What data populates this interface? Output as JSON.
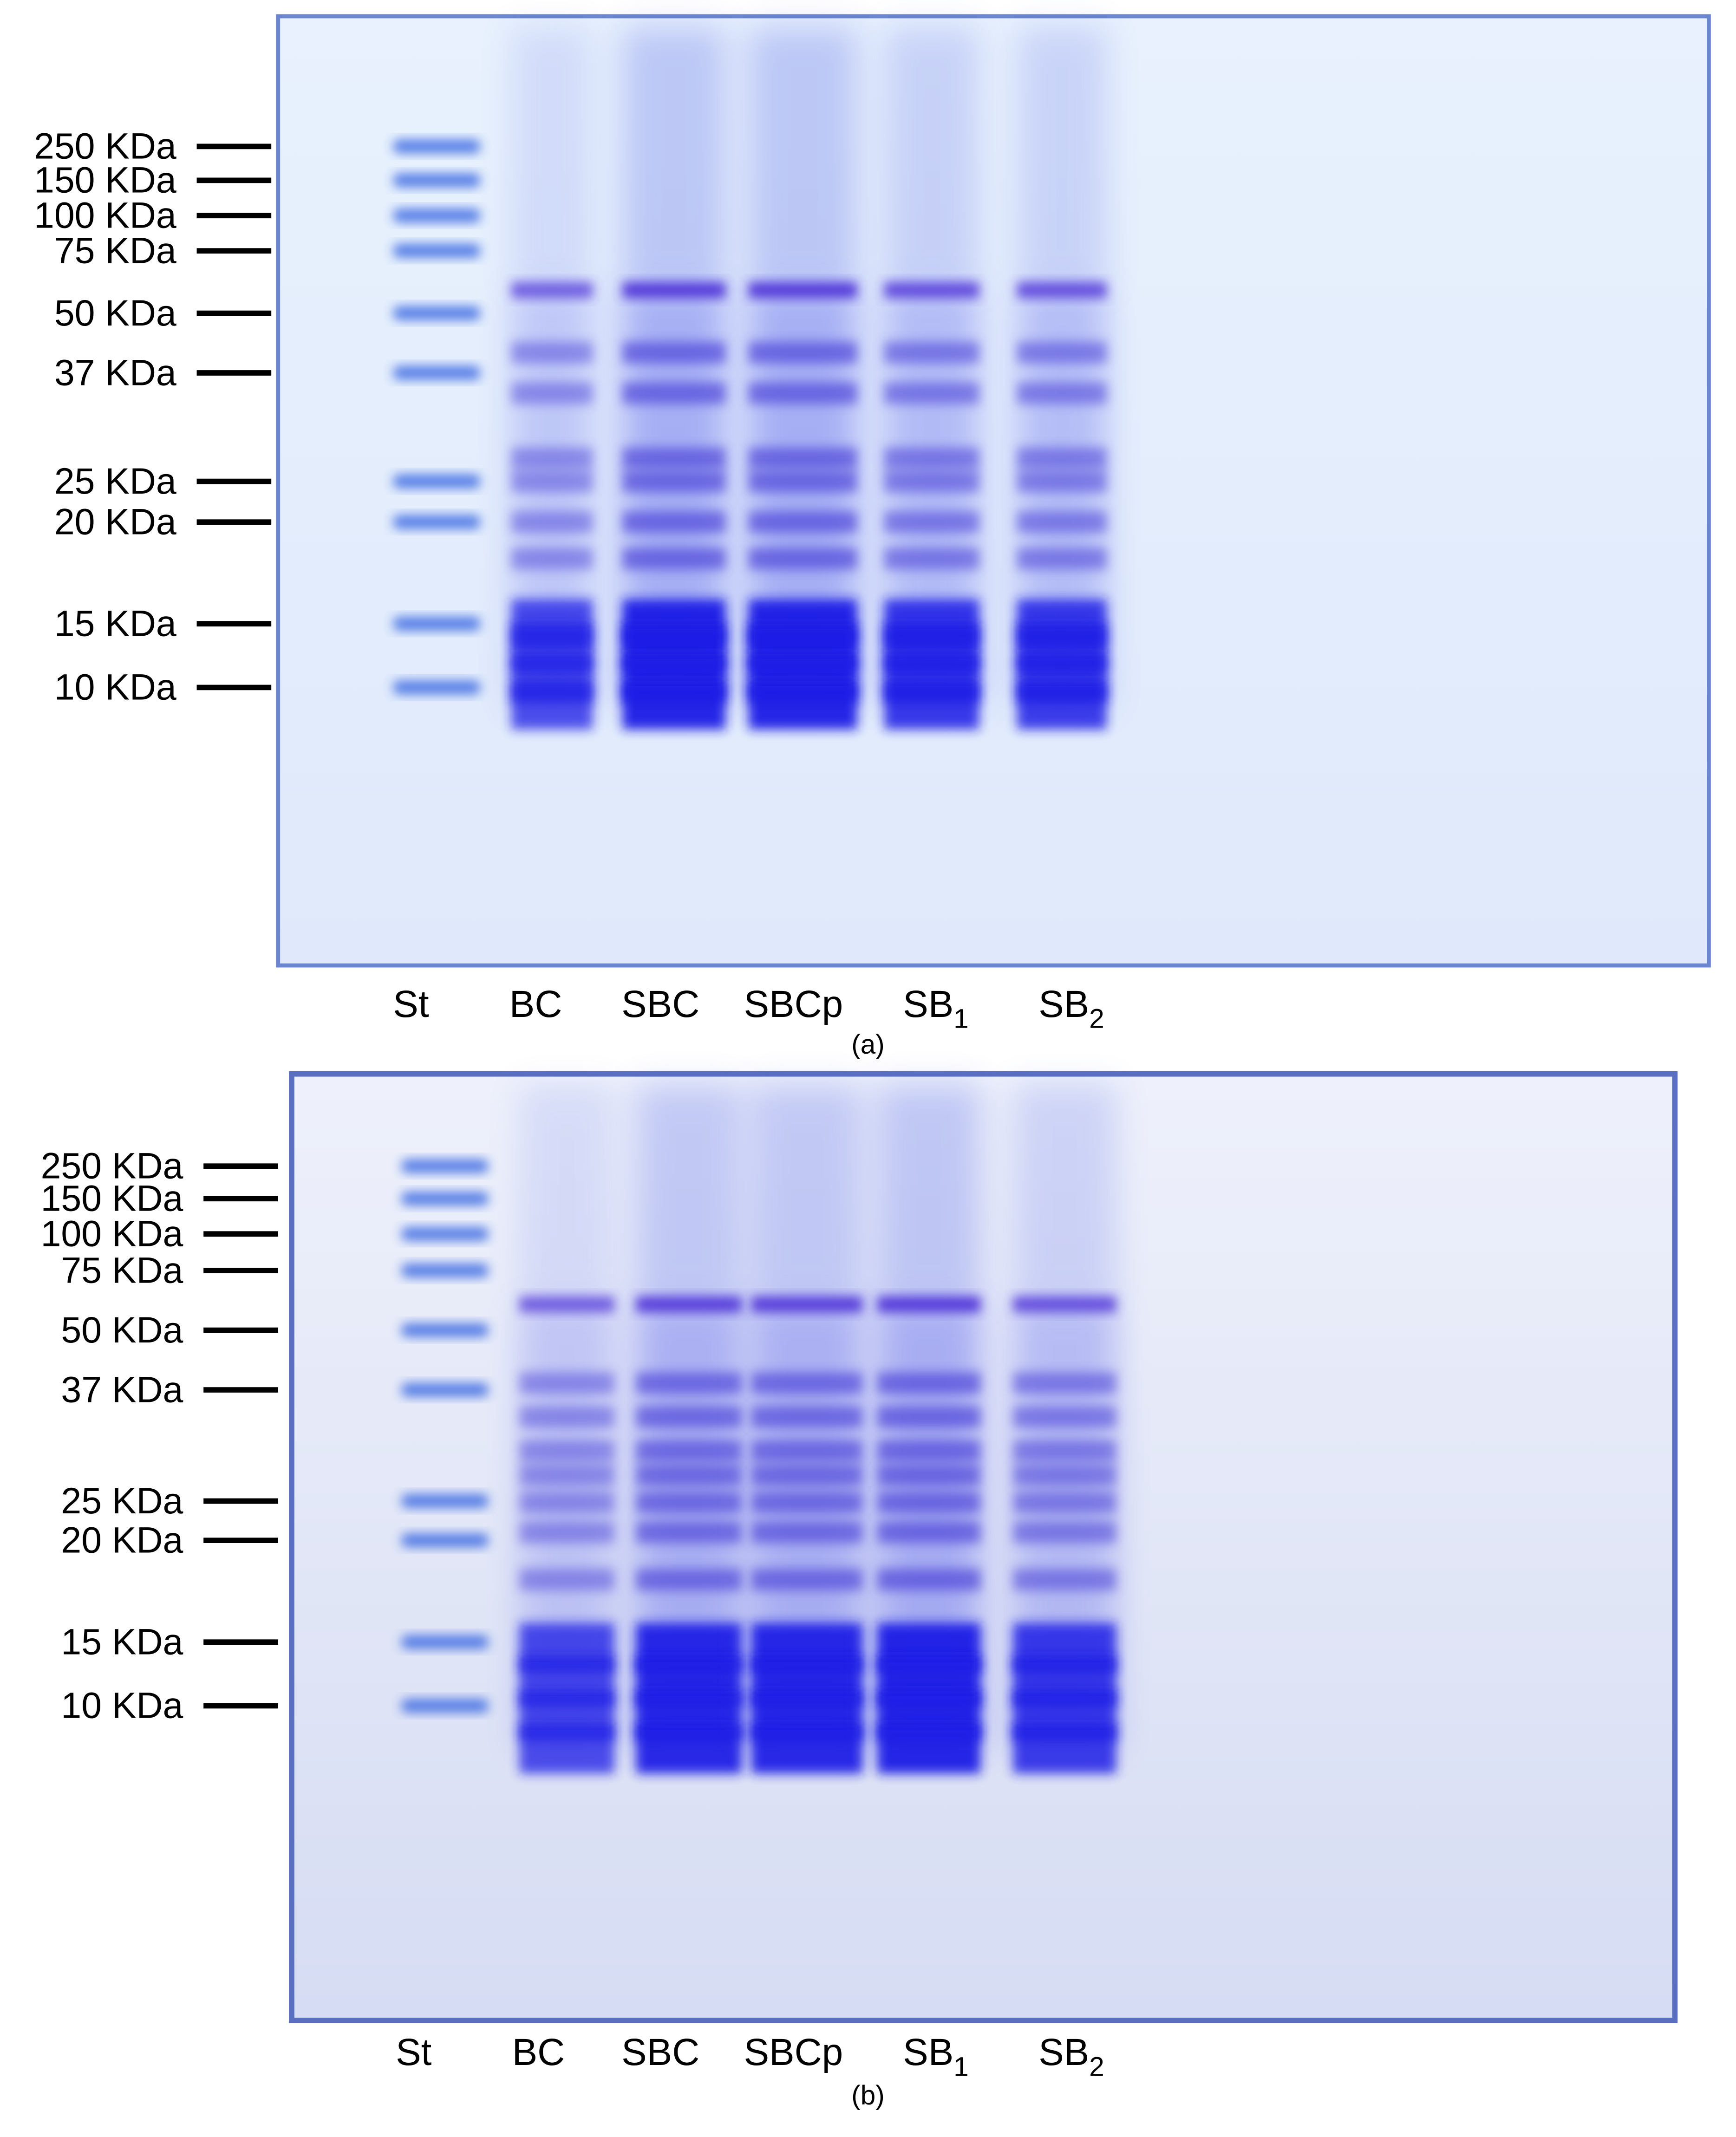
{
  "panels": [
    {
      "caption": "(a)",
      "markers": [
        "250 KDa",
        "150 KDa",
        "100 KDa",
        "75 KDa",
        "50 KDa",
        "37 KDa",
        "25 KDa",
        "20 KDa",
        "15 KDa",
        "10 KDa"
      ],
      "lanes": [
        {
          "name": "St"
        },
        {
          "name": "BC"
        },
        {
          "name": "SBC"
        },
        {
          "name": "SBCp"
        },
        {
          "name": "SB",
          "subscript": "1"
        },
        {
          "name": "SB",
          "subscript": "2"
        }
      ]
    },
    {
      "caption": "(b)",
      "markers": [
        "250 KDa",
        "150 KDa",
        "100 KDa",
        "75 KDa",
        "50 KDa",
        "37 KDa",
        "25 KDa",
        "20 KDa",
        "15 KDa",
        "10 KDa"
      ],
      "lanes": [
        {
          "name": "St"
        },
        {
          "name": "BC"
        },
        {
          "name": "SBC"
        },
        {
          "name": "SBCp"
        },
        {
          "name": "SB",
          "subscript": "1"
        },
        {
          "name": "SB",
          "subscript": "2"
        }
      ]
    }
  ]
}
